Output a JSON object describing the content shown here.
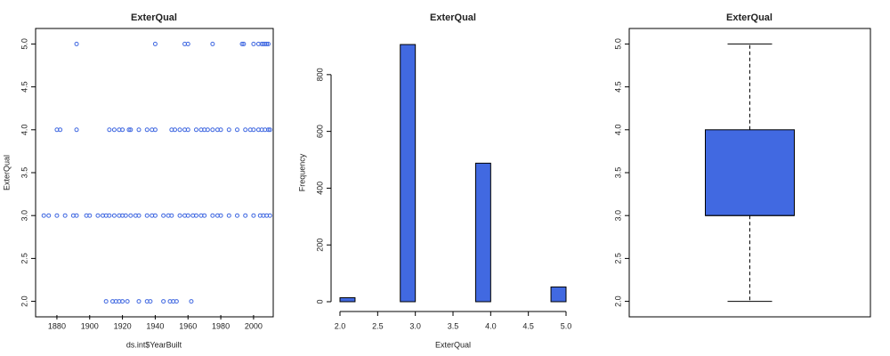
{
  "chart_data": [
    {
      "type": "scatter",
      "title": "ExterQual",
      "x_label": "ds.int$YearBuilt",
      "y_label": "ExterQual",
      "color": "#4169e1",
      "x": [
        1892,
        1940,
        1958,
        1960,
        1975,
        1993,
        1994,
        2000,
        2003,
        2005,
        2006,
        2007,
        2008,
        2009,
        1880,
        1882,
        1892,
        1912,
        1915,
        1918,
        1920,
        1924,
        1925,
        1930,
        1935,
        1938,
        1940,
        1950,
        1952,
        1955,
        1958,
        1960,
        1965,
        1968,
        1970,
        1972,
        1975,
        1978,
        1980,
        1985,
        1990,
        1995,
        1998,
        2000,
        2003,
        2005,
        2007,
        2009,
        2010,
        1872,
        1875,
        1880,
        1885,
        1890,
        1892,
        1898,
        1900,
        1905,
        1908,
        1910,
        1912,
        1915,
        1918,
        1920,
        1922,
        1925,
        1928,
        1930,
        1935,
        1938,
        1940,
        1945,
        1948,
        1950,
        1955,
        1958,
        1960,
        1963,
        1965,
        1968,
        1970,
        1975,
        1978,
        1980,
        1985,
        1990,
        1995,
        2000,
        2004,
        2006,
        2008,
        2010,
        1910,
        1914,
        1916,
        1918,
        1920,
        1923,
        1930,
        1935,
        1937,
        1945,
        1949,
        1951,
        1953,
        1962
      ],
      "y": [
        5,
        5,
        5,
        5,
        5,
        5,
        5,
        5,
        5,
        5,
        5,
        5,
        5,
        5,
        4,
        4,
        4,
        4,
        4,
        4,
        4,
        4,
        4,
        4,
        4,
        4,
        4,
        4,
        4,
        4,
        4,
        4,
        4,
        4,
        4,
        4,
        4,
        4,
        4,
        4,
        4,
        4,
        4,
        4,
        4,
        4,
        4,
        4,
        4,
        3,
        3,
        3,
        3,
        3,
        3,
        3,
        3,
        3,
        3,
        3,
        3,
        3,
        3,
        3,
        3,
        3,
        3,
        3,
        3,
        3,
        3,
        3,
        3,
        3,
        3,
        3,
        3,
        3,
        3,
        3,
        3,
        3,
        3,
        3,
        3,
        3,
        3,
        3,
        3,
        3,
        3,
        3,
        2,
        2,
        2,
        2,
        2,
        2,
        2,
        2,
        2,
        2,
        2,
        2,
        2,
        2
      ],
      "xlim": [
        1867,
        2012
      ],
      "xticks": [
        1880,
        1900,
        1920,
        1940,
        1960,
        1980,
        2000
      ],
      "ylim": [
        1.84,
        5.16
      ],
      "yticks": [
        {
          "value": 2,
          "label": "2.0"
        },
        {
          "value": 2.5,
          "label": "2.5"
        },
        {
          "value": 3,
          "label": "3.0"
        },
        {
          "value": 3.5,
          "label": "3.5"
        },
        {
          "value": 4,
          "label": "4.0"
        },
        {
          "value": 4.5,
          "label": "4.5"
        },
        {
          "value": 5,
          "label": "5.0"
        }
      ]
    },
    {
      "type": "histogram",
      "title": "ExterQual",
      "x_label": "ExterQual",
      "y_label": "Frequency",
      "color": "#4169e1",
      "bins": [
        2,
        2.2,
        2.4,
        2.6,
        2.8,
        3,
        3.2,
        3.4,
        3.6,
        3.8,
        4,
        4.2,
        4.4,
        4.6,
        4.8,
        5
      ],
      "values": [
        14,
        0,
        0,
        0,
        906,
        0,
        0,
        0,
        0,
        488,
        0,
        0,
        0,
        0,
        52
      ],
      "xlim": [
        2,
        5
      ],
      "xticks": [
        {
          "value": 2,
          "label": "2.0"
        },
        {
          "value": 2.5,
          "label": "2.5"
        },
        {
          "value": 3,
          "label": "3.0"
        },
        {
          "value": 3.5,
          "label": "3.5"
        },
        {
          "value": 4,
          "label": "4.0"
        },
        {
          "value": 4.5,
          "label": "4.5"
        },
        {
          "value": 5,
          "label": "5.0"
        }
      ],
      "ylim": [
        0,
        950
      ],
      "yticks": [
        0,
        200,
        400,
        600,
        800
      ]
    },
    {
      "type": "box",
      "title": "ExterQual",
      "color": "#4169e1",
      "stats": {
        "min": 2,
        "q1": 3,
        "median": 3,
        "q3": 4,
        "max": 5
      },
      "ylim": [
        1.84,
        5.16
      ],
      "yticks": [
        {
          "value": 2,
          "label": "2.0"
        },
        {
          "value": 2.5,
          "label": "2.5"
        },
        {
          "value": 3,
          "label": "3.0"
        },
        {
          "value": 3.5,
          "label": "3.5"
        },
        {
          "value": 4,
          "label": "4.0"
        },
        {
          "value": 4.5,
          "label": "4.5"
        },
        {
          "value": 5,
          "label": "5.0"
        }
      ]
    }
  ]
}
